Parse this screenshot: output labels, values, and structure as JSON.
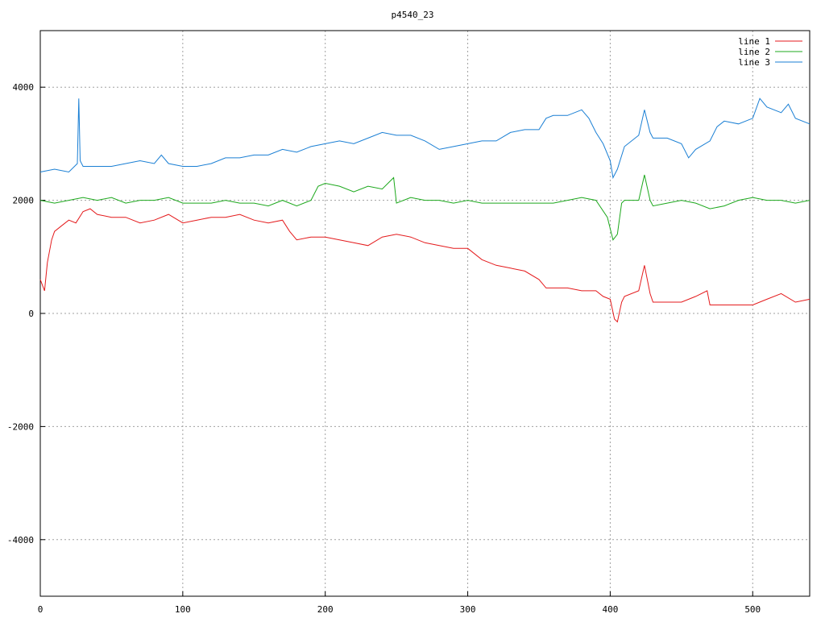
{
  "chart_data": {
    "type": "line",
    "title": "p4540_23",
    "xlim": [
      0,
      540
    ],
    "xticks": [
      0,
      100,
      200,
      300,
      400,
      500
    ],
    "ylim": [
      -5000,
      5000
    ],
    "yticks": [
      -4000,
      -2000,
      0,
      2000,
      4000
    ],
    "grid": true,
    "legend": "top-right",
    "series": [
      {
        "name": "line 1",
        "color": "#e41a1c",
        "x": [
          0,
          3,
          5,
          8,
          10,
          15,
          20,
          25,
          30,
          35,
          40,
          50,
          60,
          70,
          80,
          90,
          100,
          110,
          120,
          130,
          140,
          150,
          160,
          170,
          175,
          180,
          190,
          200,
          210,
          220,
          230,
          240,
          250,
          260,
          270,
          280,
          290,
          300,
          310,
          320,
          330,
          340,
          350,
          355,
          360,
          370,
          380,
          390,
          395,
          400,
          403,
          405,
          408,
          410,
          420,
          424,
          428,
          430,
          440,
          450,
          460,
          468,
          470,
          480,
          490,
          500,
          510,
          520,
          530,
          540
        ],
        "values": [
          600,
          400,
          900,
          1300,
          1450,
          1550,
          1650,
          1600,
          1800,
          1850,
          1750,
          1700,
          1700,
          1600,
          1650,
          1750,
          1600,
          1650,
          1700,
          1700,
          1750,
          1650,
          1600,
          1650,
          1450,
          1300,
          1350,
          1350,
          1300,
          1250,
          1200,
          1350,
          1400,
          1350,
          1250,
          1200,
          1150,
          1150,
          950,
          850,
          800,
          750,
          600,
          450,
          450,
          450,
          400,
          400,
          300,
          250,
          -100,
          -150,
          200,
          300,
          400,
          850,
          350,
          200,
          200,
          200,
          300,
          400,
          150,
          150,
          150,
          150,
          250,
          350,
          200,
          250
        ]
      },
      {
        "name": "line 2",
        "color": "#1ca81c",
        "x": [
          0,
          10,
          20,
          30,
          40,
          50,
          60,
          70,
          80,
          90,
          100,
          110,
          120,
          130,
          140,
          150,
          160,
          170,
          180,
          190,
          195,
          200,
          210,
          220,
          230,
          240,
          248,
          250,
          260,
          270,
          280,
          290,
          300,
          310,
          320,
          330,
          340,
          350,
          360,
          370,
          380,
          390,
          398,
          402,
          405,
          408,
          410,
          420,
          424,
          428,
          430,
          440,
          450,
          460,
          470,
          480,
          490,
          500,
          510,
          520,
          530,
          540
        ],
        "values": [
          2000,
          1950,
          2000,
          2050,
          2000,
          2050,
          1950,
          2000,
          2000,
          2050,
          1950,
          1950,
          1950,
          2000,
          1950,
          1950,
          1900,
          2000,
          1900,
          2000,
          2250,
          2300,
          2250,
          2150,
          2250,
          2200,
          2400,
          1950,
          2050,
          2000,
          2000,
          1950,
          2000,
          1950,
          1950,
          1950,
          1950,
          1950,
          1950,
          2000,
          2050,
          2000,
          1700,
          1300,
          1400,
          1950,
          2000,
          2000,
          2450,
          2000,
          1900,
          1950,
          2000,
          1950,
          1850,
          1900,
          2000,
          2050,
          2000,
          2000,
          1950,
          2000
        ]
      },
      {
        "name": "line 3",
        "color": "#1a7fd4",
        "x": [
          0,
          10,
          20,
          26,
          27,
          28,
          30,
          40,
          50,
          60,
          70,
          80,
          85,
          90,
          100,
          110,
          120,
          130,
          140,
          150,
          160,
          170,
          180,
          190,
          200,
          210,
          220,
          230,
          240,
          250,
          260,
          270,
          280,
          290,
          300,
          310,
          320,
          330,
          340,
          350,
          355,
          360,
          370,
          380,
          385,
          390,
          395,
          400,
          402,
          405,
          410,
          420,
          424,
          428,
          430,
          440,
          450,
          455,
          460,
          470,
          475,
          480,
          490,
          500,
          505,
          510,
          520,
          525,
          530,
          540
        ],
        "values": [
          2500,
          2550,
          2500,
          2650,
          3800,
          2700,
          2600,
          2600,
          2600,
          2650,
          2700,
          2650,
          2800,
          2650,
          2600,
          2600,
          2650,
          2750,
          2750,
          2800,
          2800,
          2900,
          2850,
          2950,
          3000,
          3050,
          3000,
          3100,
          3200,
          3150,
          3150,
          3050,
          2900,
          2950,
          3000,
          3050,
          3050,
          3200,
          3250,
          3250,
          3450,
          3500,
          3500,
          3600,
          3450,
          3200,
          3000,
          2700,
          2400,
          2550,
          2950,
          3150,
          3600,
          3200,
          3100,
          3100,
          3000,
          2750,
          2900,
          3050,
          3300,
          3400,
          3350,
          3450,
          3800,
          3650,
          3550,
          3700,
          3450,
          3350
        ]
      }
    ]
  }
}
